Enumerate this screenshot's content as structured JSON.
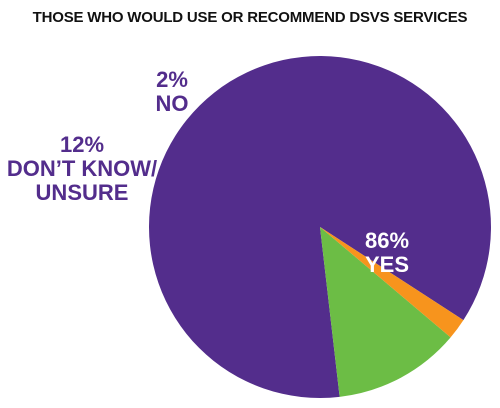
{
  "chart_data": {
    "type": "pie",
    "title": "THOSE WHO WOULD USE OR RECOMMEND DSVS SERVICES",
    "slices": [
      {
        "key": "yes",
        "label": "YES",
        "value": 86,
        "value_label": "86%",
        "color": "#532d8c",
        "label_color": "#ffffff"
      },
      {
        "key": "dont-know",
        "label": "DON’T KNOW/ UNSURE",
        "label_lines": [
          "DON’T KNOW/",
          "UNSURE"
        ],
        "value": 12,
        "value_label": "12%",
        "color": "#6cbd45",
        "label_color": "#532d8c"
      },
      {
        "key": "no",
        "label": "NO",
        "value": 2,
        "value_label": "2%",
        "color": "#f7941d",
        "label_color": "#532d8c"
      }
    ],
    "legend": "none",
    "grid": false
  }
}
